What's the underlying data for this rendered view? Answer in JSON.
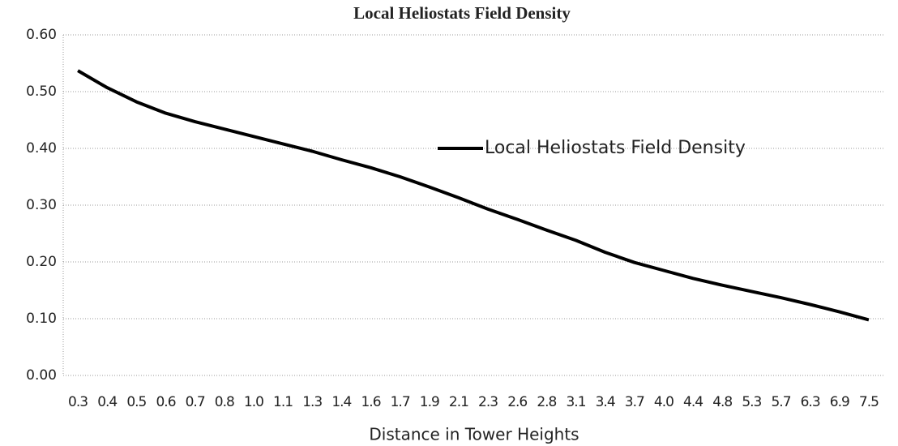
{
  "chart_data": {
    "type": "line",
    "title": "Local Heliostats Field Density",
    "x_label": "Distance in Tower Heights",
    "categories": [
      "0.3",
      "0.4",
      "0.5",
      "0.6",
      "0.7",
      "0.8",
      "1.0",
      "1.1",
      "1.3",
      "1.4",
      "1.6",
      "1.7",
      "1.9",
      "2.1",
      "2.3",
      "2.6",
      "2.8",
      "3.1",
      "3.4",
      "3.7",
      "4.0",
      "4.4",
      "4.8",
      "5.3",
      "5.7",
      "6.3",
      "6.9",
      "7.5"
    ],
    "series": [
      {
        "name": "Local Heliostats Field Density",
        "color": "#000000",
        "values": [
          0.537,
          0.507,
          0.482,
          0.462,
          0.447,
          0.434,
          0.421,
          0.408,
          0.395,
          0.38,
          0.366,
          0.35,
          0.332,
          0.313,
          0.293,
          0.275,
          0.256,
          0.238,
          0.217,
          0.199,
          0.185,
          0.171,
          0.159,
          0.148,
          0.137,
          0.125,
          0.112,
          0.098
        ]
      }
    ],
    "ylim": [
      0,
      0.6
    ],
    "yticks": [
      {
        "value": 0,
        "label": "0.00"
      },
      {
        "value": 0.1,
        "label": "0.10"
      },
      {
        "value": 0.2,
        "label": "0.20"
      },
      {
        "value": 0.3,
        "label": "0.30"
      },
      {
        "value": 0.4,
        "label": "0.40"
      },
      {
        "value": 0.5,
        "label": "0.50"
      },
      {
        "value": 0.6,
        "label": "0.60"
      }
    ],
    "grid": true,
    "legend": "inside"
  }
}
